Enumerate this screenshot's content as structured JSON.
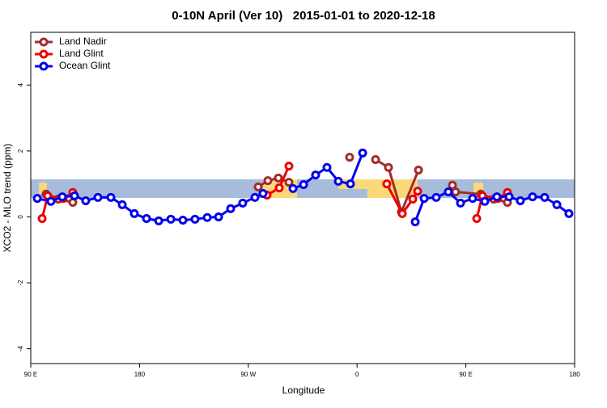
{
  "chart_data": {
    "type": "line",
    "title": "0-10N April (Ver 10)   2015-01-01 to 2020-12-18",
    "xlabel": "Longitude",
    "ylabel": "XCO2 - MLO trend (ppm)",
    "xlim": [
      90,
      540
    ],
    "ylim": [
      -4.45,
      5.6
    ],
    "xticks": [
      {
        "value": 90,
        "label": "90 E"
      },
      180,
      {
        "value": 270,
        "label": "90 W"
      },
      {
        "value": 360,
        "label": "0"
      },
      {
        "value": 450,
        "label": "90 E"
      },
      {
        "value": 540,
        "label": "180"
      }
    ],
    "yticks": [
      -4,
      -2,
      0,
      2,
      4
    ],
    "legend": "top-left",
    "series": [
      {
        "name": "Land Nadir",
        "color": "#a52a2a",
        "x": [
          102.7,
          112.8,
          124.8,
          null,
          278.2,
          286.2,
          294.9,
          303.6,
          null,
          353.8,
          null,
          375.3,
          386,
          396.7,
          410.8,
          null,
          438.9,
          441.5,
          462.3,
          473,
          484.4
        ],
        "values": [
          0.69,
          0.54,
          0.44,
          null,
          0.91,
          1.1,
          1.18,
          1.05,
          null,
          1.81,
          null,
          1.74,
          1.5,
          0.15,
          1.42,
          null,
          0.96,
          0.76,
          0.69,
          0.54,
          0.44
        ]
      },
      {
        "name": "Land Glint",
        "color": "#ee0000",
        "x": [
          99.4,
          104,
          116.8,
          124.8,
          null,
          285.5,
          295.6,
          303.6,
          null,
          384.6,
          397.4,
          406.1,
          410.1,
          null,
          459,
          463.7,
          476.4,
          484.4
        ],
        "values": [
          -0.05,
          0.64,
          0.56,
          0.74,
          null,
          0.66,
          0.88,
          1.54,
          null,
          1.0,
          0.1,
          0.54,
          0.78,
          null,
          -0.05,
          0.64,
          0.56,
          0.74
        ]
      },
      {
        "name": "Ocean Glint",
        "color": "#0000ee",
        "x": [
          95.4,
          106.7,
          116.1,
          126.2,
          135.5,
          145.6,
          156.3,
          165.7,
          175.7,
          185.8,
          195.9,
          205.9,
          215.9,
          225.9,
          236,
          245.4,
          255.4,
          265.4,
          275.5,
          282.2,
          null,
          307,
          315.7,
          325.7,
          335.1,
          344.5,
          354.5,
          364.6,
          null,
          408.1,
          415.5,
          425.5,
          435.5,
          445.6,
          455.6,
          465.7,
          475.7,
          485.8,
          495.1,
          505.2,
          515.2,
          525.3,
          535.3
        ],
        "values": [
          0.56,
          0.47,
          0.61,
          0.64,
          0.49,
          0.59,
          0.59,
          0.37,
          0.1,
          -0.05,
          -0.12,
          -0.07,
          -0.1,
          -0.07,
          -0.02,
          0,
          0.25,
          0.42,
          0.59,
          0.71,
          null,
          0.86,
          0.98,
          1.27,
          1.5,
          1.08,
          1.0,
          1.94,
          null,
          -0.15,
          0.56,
          0.59,
          0.76,
          0.42,
          0.56,
          0.47,
          0.61,
          0.61,
          0.49,
          0.61,
          0.59,
          0.37,
          0.1
        ]
      }
    ]
  }
}
